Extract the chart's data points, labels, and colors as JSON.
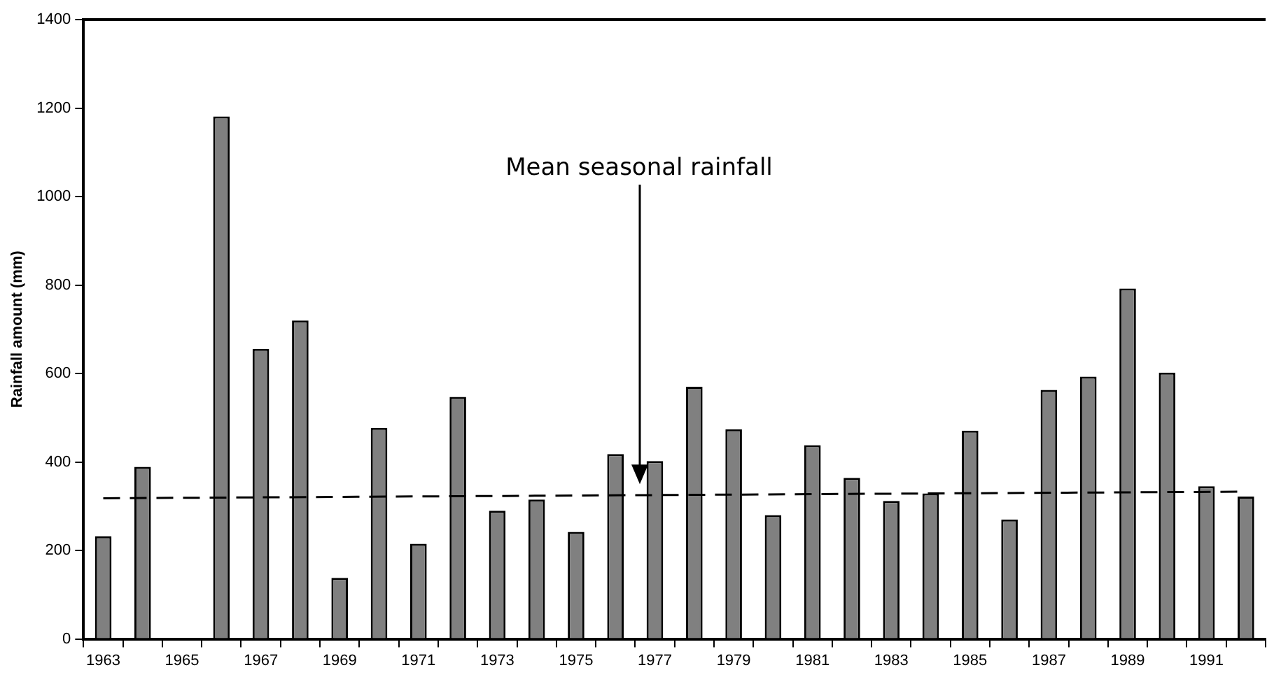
{
  "chart_data": {
    "type": "bar",
    "ylabel": "Rainfall amount (mm)",
    "categories": [
      "1963",
      null,
      "1965",
      null,
      "1967",
      null,
      "1969",
      null,
      "1971",
      null,
      "1973",
      null,
      "1975",
      null,
      "1977",
      null,
      "1979",
      null,
      "1981",
      null,
      "1983",
      null,
      "1985",
      null,
      "1987",
      null,
      "1989",
      null,
      "1991",
      null
    ],
    "series": [
      {
        "color": "#808080",
        "values": [
          232,
          389,
          null,
          1181,
          656,
          720,
          138,
          477,
          215,
          547,
          290,
          315,
          242,
          418,
          402,
          570,
          474,
          280,
          438,
          364,
          312,
          329,
          471,
          270,
          563,
          593,
          792,
          602,
          345,
          322
        ]
      },
      {
        "type": "line",
        "color": "#000000",
        "line_style": "dashed",
        "marker": "none",
        "values": [
          318,
          null,
          null,
          null,
          null,
          null,
          null,
          null,
          null,
          null,
          null,
          null,
          null,
          null,
          null,
          null,
          null,
          null,
          null,
          null,
          null,
          null,
          null,
          null,
          null,
          null,
          null,
          null,
          null,
          333
        ]
      }
    ],
    "ylim": [
      0,
      1400
    ],
    "yticks": [
      0,
      200,
      400,
      600,
      800,
      1000,
      1200,
      1400
    ],
    "annotations": [
      "Mean seasonal rainfall"
    ]
  }
}
